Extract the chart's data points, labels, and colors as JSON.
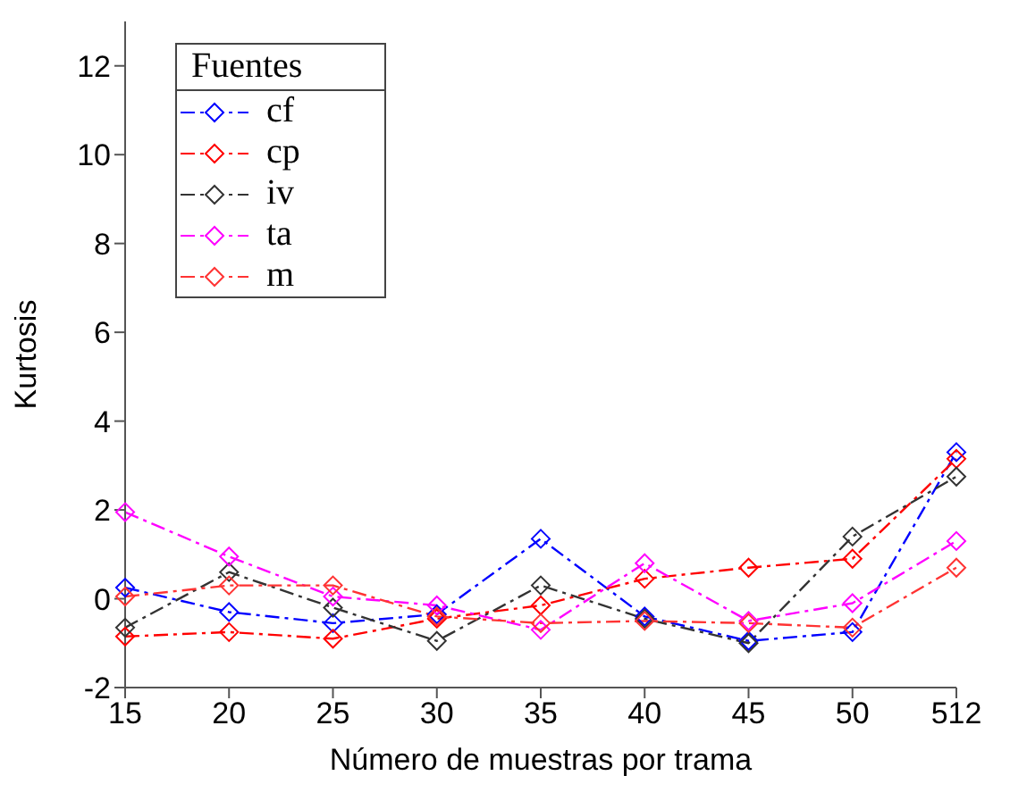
{
  "chart_data": {
    "type": "line",
    "xlabel": "Número de muestras por trama",
    "ylabel": "Kurtosis",
    "legend_title": "Fuentes",
    "categories": [
      "15",
      "20",
      "25",
      "30",
      "35",
      "40",
      "45",
      "50",
      "512"
    ],
    "ylim": [
      -2,
      13
    ],
    "yticks": [
      -2,
      0,
      2,
      4,
      6,
      8,
      10,
      12
    ],
    "series": [
      {
        "name": "cf",
        "color": "#0000ff",
        "values": [
          0.25,
          -0.3,
          -0.55,
          -0.35,
          1.35,
          -0.4,
          -0.95,
          -0.75,
          3.3
        ]
      },
      {
        "name": "cp",
        "color": "#ff0000",
        "values": [
          -0.85,
          -0.75,
          -0.9,
          -0.45,
          -0.15,
          0.45,
          0.7,
          0.9,
          3.15
        ]
      },
      {
        "name": "iv",
        "color": "#333333",
        "values": [
          -0.65,
          0.6,
          -0.2,
          -0.95,
          0.3,
          -0.45,
          -1.0,
          1.4,
          2.75
        ]
      },
      {
        "name": "ta",
        "color": "#ff00ff",
        "values": [
          1.95,
          0.95,
          0.05,
          -0.15,
          -0.7,
          0.8,
          -0.5,
          -0.1,
          1.3
        ]
      },
      {
        "name": "m",
        "color": "#ff3333",
        "values": [
          0.05,
          0.3,
          0.3,
          -0.4,
          -0.55,
          -0.5,
          -0.55,
          -0.65,
          0.7
        ]
      }
    ],
    "grid": false,
    "legend": "top left",
    "marker": "diamond",
    "line_style": "dashed"
  }
}
